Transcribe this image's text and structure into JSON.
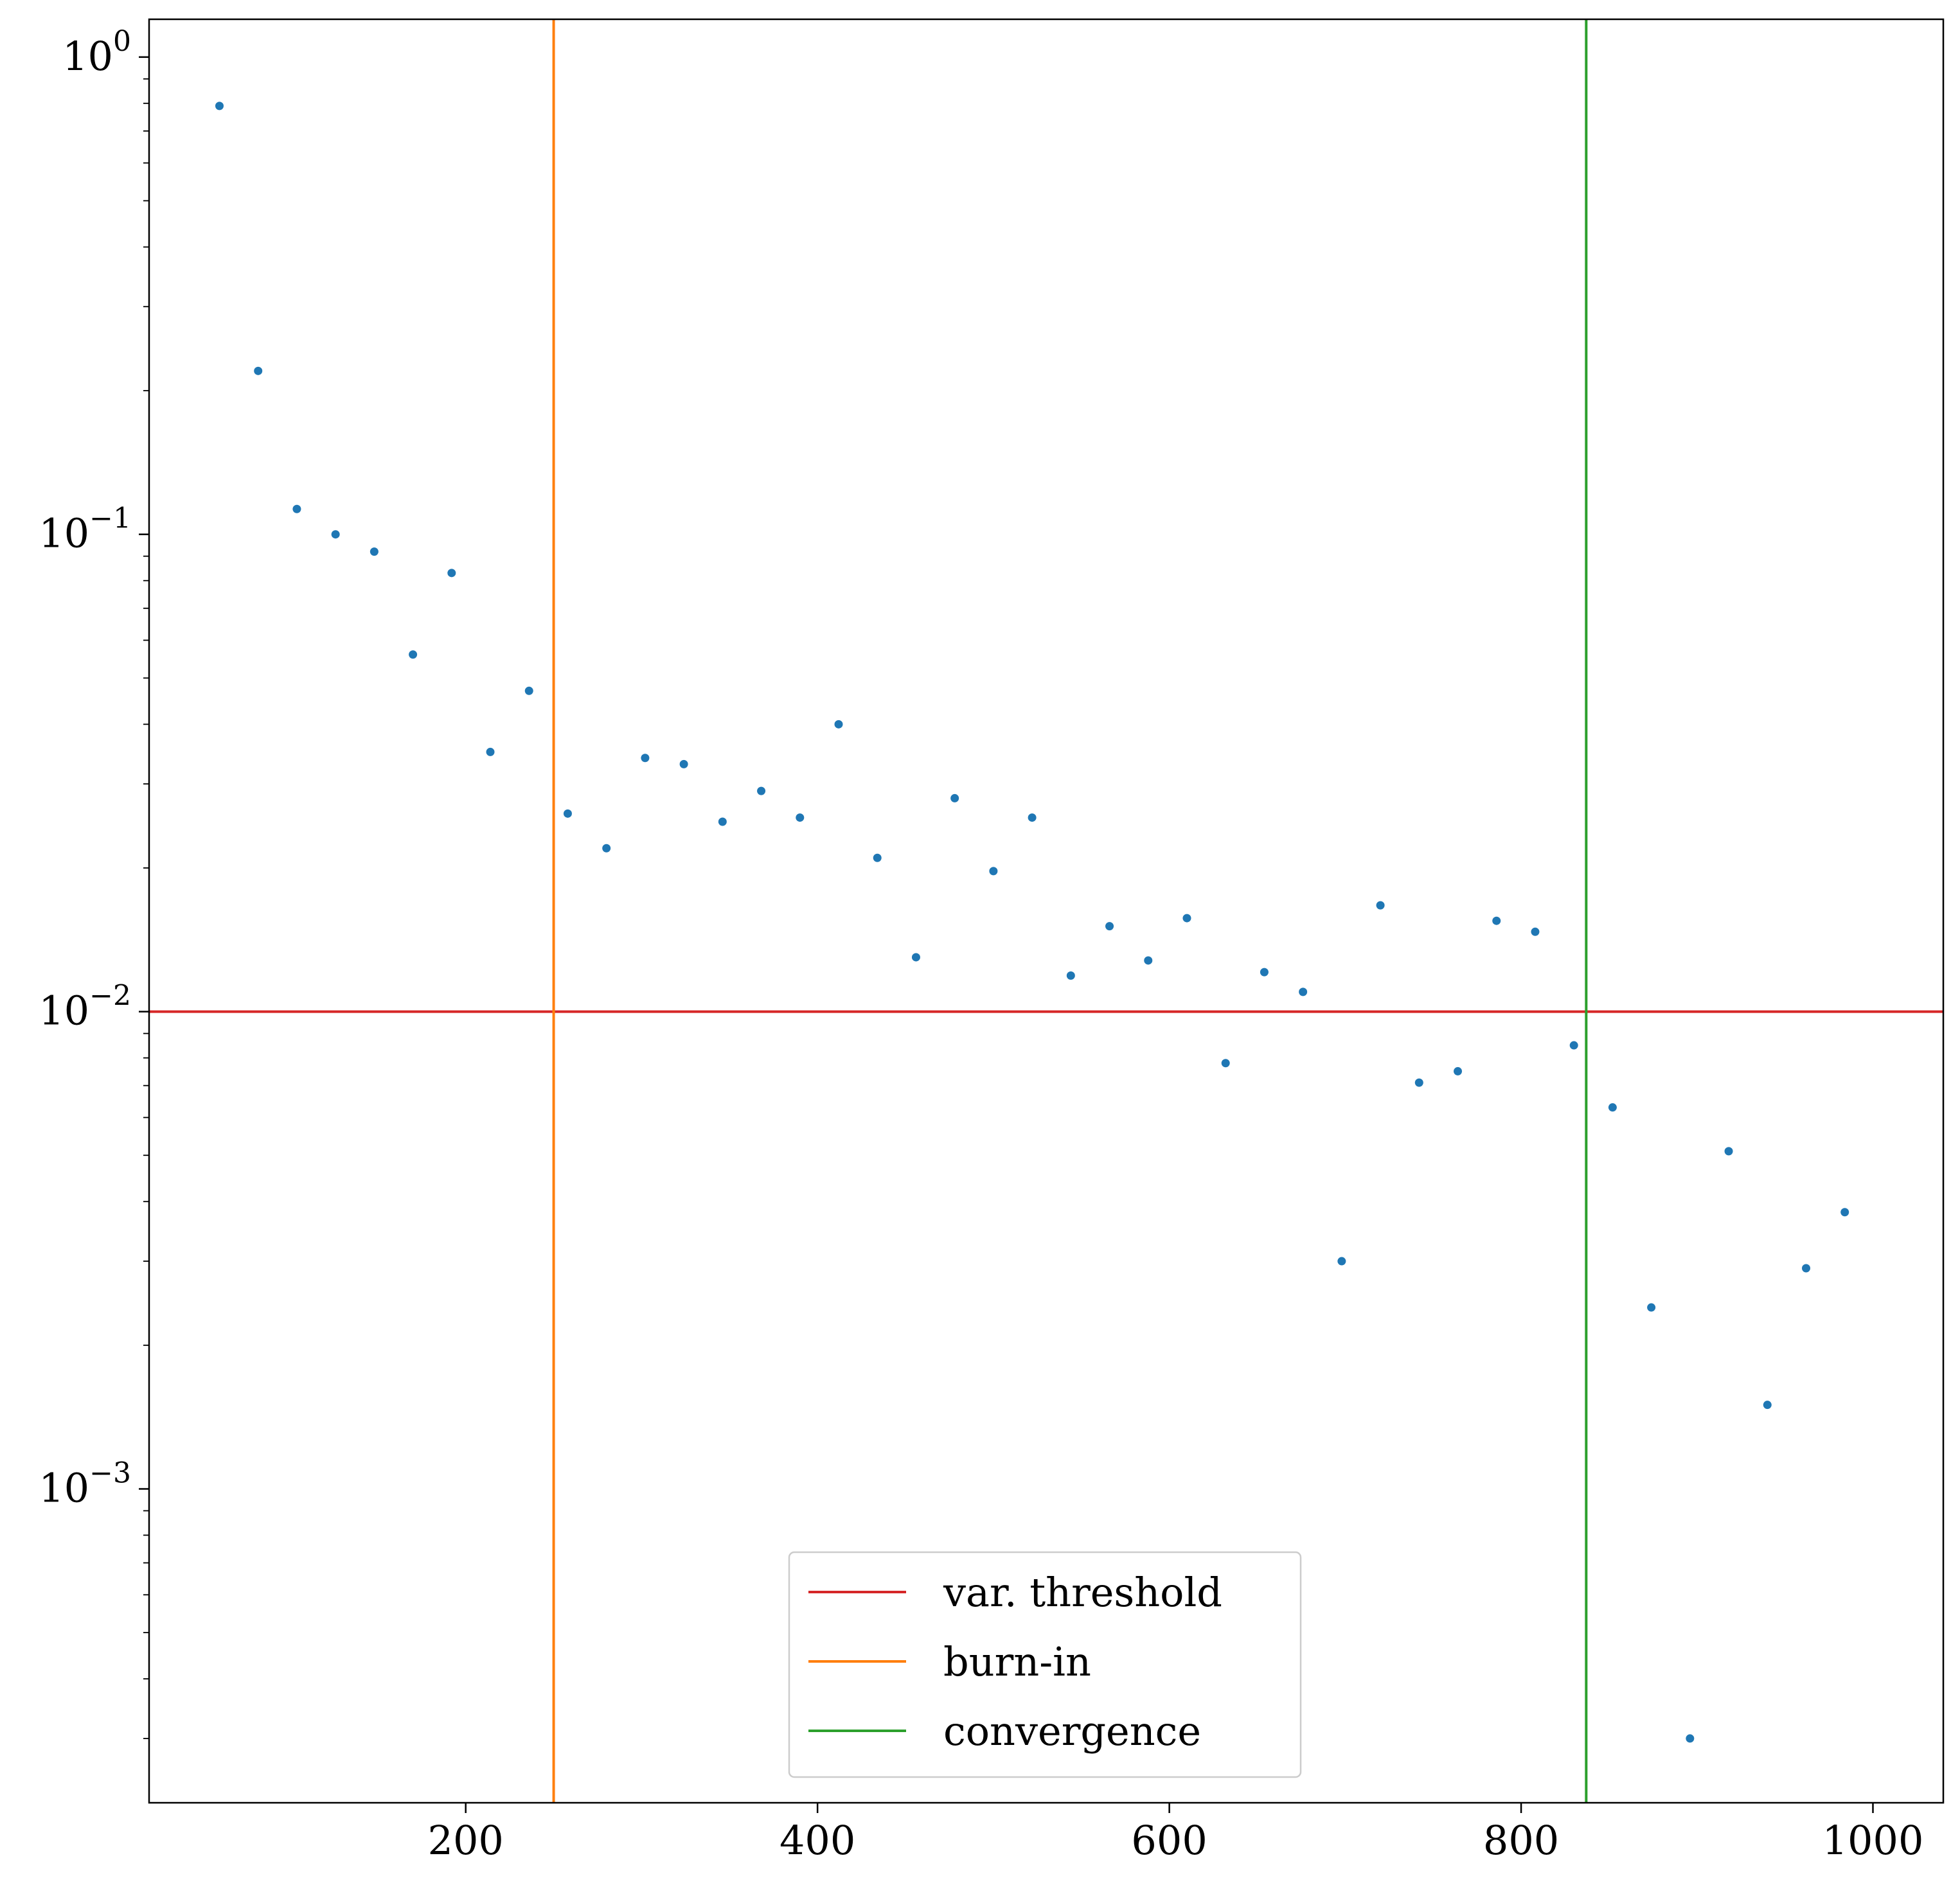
{
  "chart_data": {
    "type": "scatter",
    "title": "",
    "xlabel": "",
    "ylabel": "",
    "xscale": "linear",
    "yscale": "log",
    "xlim": [
      20,
      1040
    ],
    "ylim": [
      0.00022,
      1.2
    ],
    "grid": false,
    "x_ticks": [
      {
        "value": 200,
        "label": "200"
      },
      {
        "value": 400,
        "label": "400"
      },
      {
        "value": 600,
        "label": "600"
      },
      {
        "value": 800,
        "label": "800"
      },
      {
        "value": 1000,
        "label": "1000"
      }
    ],
    "y_ticks": [
      {
        "value": 1,
        "base": "10",
        "exp": "0"
      },
      {
        "value": 0.1,
        "base": "10",
        "exp": "−1"
      },
      {
        "value": 0.01,
        "base": "10",
        "exp": "−2"
      },
      {
        "value": 0.001,
        "base": "10",
        "exp": "−3"
      }
    ],
    "scatter": {
      "color": "#1f77b4",
      "points": [
        [
          60,
          0.79
        ],
        [
          82,
          0.22
        ],
        [
          104,
          0.113
        ],
        [
          126,
          0.1
        ],
        [
          148,
          0.092
        ],
        [
          170,
          0.056
        ],
        [
          192,
          0.083
        ],
        [
          214,
          0.035
        ],
        [
          236,
          0.047
        ],
        [
          258,
          0.026
        ],
        [
          280,
          0.022
        ],
        [
          302,
          0.034
        ],
        [
          324,
          0.033
        ],
        [
          346,
          0.025
        ],
        [
          368,
          0.029
        ],
        [
          390,
          0.0255
        ],
        [
          412,
          0.04
        ],
        [
          434,
          0.021
        ],
        [
          456,
          0.013
        ],
        [
          478,
          0.028
        ],
        [
          500,
          0.0197
        ],
        [
          522,
          0.0255
        ],
        [
          544,
          0.0119
        ],
        [
          566,
          0.0151
        ],
        [
          588,
          0.0128
        ],
        [
          610,
          0.0157
        ],
        [
          632,
          0.0078
        ],
        [
          654,
          0.0121
        ],
        [
          676,
          0.011
        ],
        [
          698,
          0.003
        ],
        [
          720,
          0.0167
        ],
        [
          742,
          0.0071
        ],
        [
          764,
          0.0075
        ],
        [
          786,
          0.0155
        ],
        [
          808,
          0.0147
        ],
        [
          830,
          0.0085
        ],
        [
          852,
          0.0063
        ],
        [
          874,
          0.0024
        ],
        [
          896,
          0.0003
        ],
        [
          918,
          0.0051
        ],
        [
          940,
          0.0015
        ],
        [
          962,
          0.0029
        ],
        [
          984,
          0.0038
        ]
      ]
    },
    "lines": [
      {
        "name": "var. threshold",
        "orientation": "horizontal",
        "value": 0.01,
        "color": "#d62728"
      },
      {
        "name": "burn-in",
        "orientation": "vertical",
        "value": 250,
        "color": "#ff7f0e"
      },
      {
        "name": "convergence",
        "orientation": "vertical",
        "value": 837,
        "color": "#2ca02c"
      }
    ],
    "legend": {
      "position": "lower center",
      "entries": [
        {
          "label": "var. threshold",
          "color": "#d62728"
        },
        {
          "label": "burn-in",
          "color": "#ff7f0e"
        },
        {
          "label": "convergence",
          "color": "#2ca02c"
        }
      ]
    }
  }
}
